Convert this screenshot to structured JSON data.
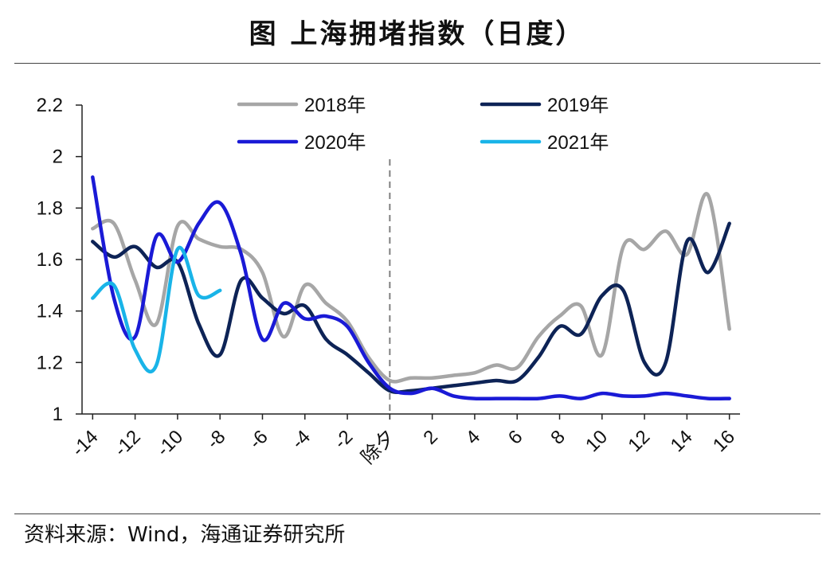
{
  "title": "图  上海拥堵指数（日度）",
  "source": "资料来源：Wind，海通证券研究所",
  "chart_data": {
    "type": "line",
    "title": "图  上海拥堵指数（日度）",
    "xlabel": "",
    "ylabel": "",
    "xlim": [
      -14,
      16
    ],
    "ylim": [
      1,
      2.2
    ],
    "y_ticks": [
      1,
      1.2,
      1.4,
      1.6,
      1.8,
      2,
      2.2
    ],
    "y_tick_labels": [
      "1",
      "1.2",
      "1.4",
      "1.6",
      "1.8",
      "2",
      "2.2"
    ],
    "x_ticks": [
      -14,
      -12,
      -10,
      -8,
      -6,
      -4,
      -2,
      0,
      2,
      4,
      6,
      8,
      10,
      12,
      14,
      16
    ],
    "x_tick_labels": [
      "-14",
      "-12",
      "-10",
      "-8",
      "-6",
      "-4",
      "-2",
      "除夕",
      "2",
      "4",
      "6",
      "8",
      "10",
      "12",
      "14",
      "16"
    ],
    "marker_line": {
      "x": 0,
      "style": "dashed"
    },
    "grid": false,
    "legend_position": "top",
    "x": [
      -14,
      -13,
      -12,
      -11,
      -10,
      -9,
      -8,
      -7,
      -6,
      -5,
      -4,
      -3,
      -2,
      -1,
      0,
      1,
      2,
      3,
      4,
      5,
      6,
      7,
      8,
      9,
      10,
      11,
      12,
      13,
      14,
      15,
      16
    ],
    "series": [
      {
        "name": "2018年",
        "color": "#a6a6a6",
        "values": [
          1.72,
          1.74,
          1.52,
          1.35,
          1.73,
          1.68,
          1.65,
          1.64,
          1.55,
          1.3,
          1.5,
          1.43,
          1.36,
          1.22,
          1.13,
          1.14,
          1.14,
          1.15,
          1.16,
          1.19,
          1.18,
          1.3,
          1.38,
          1.42,
          1.23,
          1.65,
          1.64,
          1.71,
          1.62,
          1.85,
          1.33
        ]
      },
      {
        "name": "2019年",
        "color": "#0d2356",
        "values": [
          1.67,
          1.61,
          1.65,
          1.57,
          1.59,
          1.35,
          1.23,
          1.52,
          1.45,
          1.39,
          1.42,
          1.29,
          1.23,
          1.16,
          1.09,
          1.09,
          1.1,
          1.11,
          1.12,
          1.13,
          1.13,
          1.22,
          1.34,
          1.31,
          1.46,
          1.48,
          1.2,
          1.2,
          1.67,
          1.55,
          1.74
        ]
      },
      {
        "name": "2020年",
        "color": "#1a1ad6",
        "values": [
          1.92,
          1.45,
          1.3,
          1.69,
          1.59,
          1.74,
          1.82,
          1.62,
          1.29,
          1.43,
          1.37,
          1.38,
          1.34,
          1.2,
          1.1,
          1.08,
          1.1,
          1.07,
          1.06,
          1.06,
          1.06,
          1.06,
          1.07,
          1.06,
          1.08,
          1.07,
          1.07,
          1.08,
          1.07,
          1.06,
          1.06
        ]
      },
      {
        "name": "2021年",
        "color": "#19b4e8",
        "values": [
          1.45,
          1.5,
          1.25,
          1.19,
          1.64,
          1.46,
          1.48,
          null,
          null,
          null,
          null,
          null,
          null,
          null,
          null,
          null,
          null,
          null,
          null,
          null,
          null,
          null,
          null,
          null,
          null,
          null,
          null,
          null,
          null,
          null,
          null
        ]
      }
    ]
  }
}
